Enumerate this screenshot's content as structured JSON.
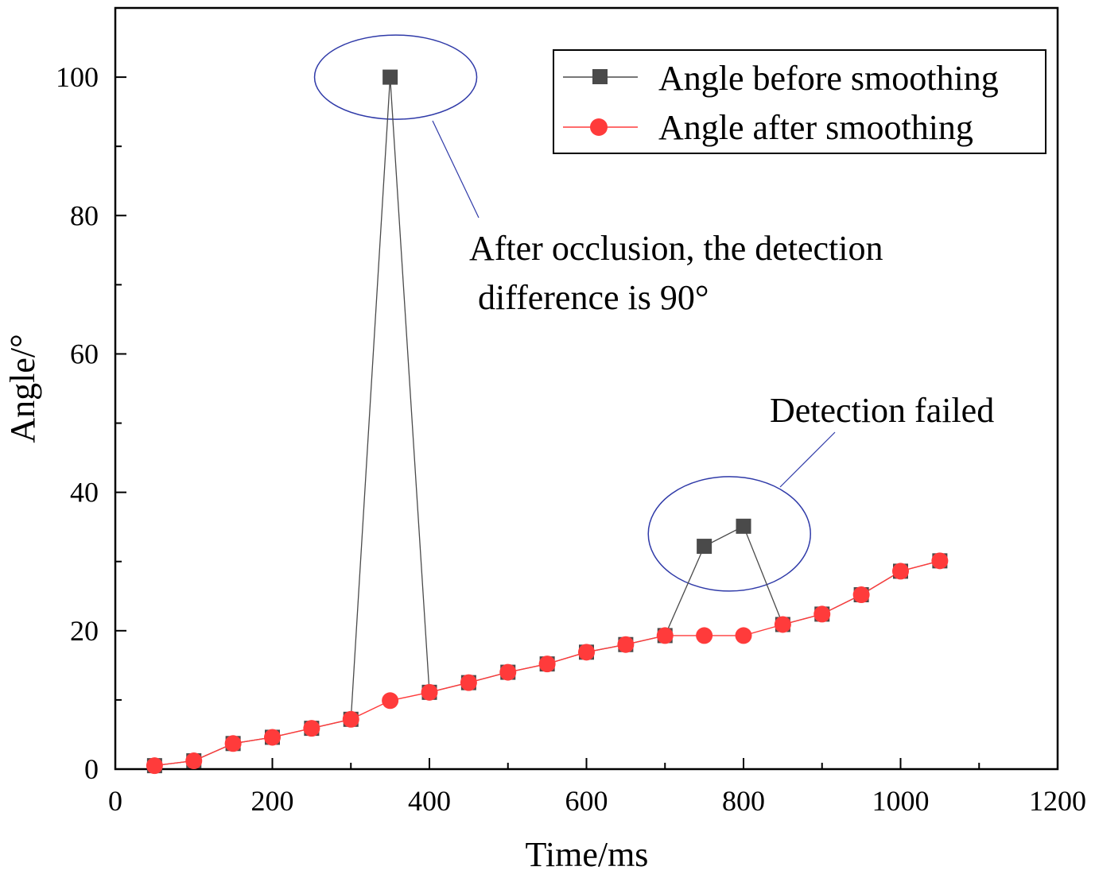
{
  "chart_data": {
    "type": "line",
    "title": "",
    "xlabel": "Time/ms",
    "ylabel": "Angle/°",
    "xlim": [
      0,
      1200
    ],
    "ylim": [
      0,
      110
    ],
    "x_ticks": [
      0,
      200,
      400,
      600,
      800,
      1000,
      1200
    ],
    "y_ticks": [
      0,
      20,
      40,
      60,
      80,
      100
    ],
    "grid": false,
    "legend_position": "top-right",
    "x": [
      50,
      100,
      150,
      200,
      250,
      300,
      350,
      400,
      450,
      500,
      550,
      600,
      650,
      700,
      750,
      800,
      850,
      900,
      950,
      1000,
      1050
    ],
    "series": [
      {
        "name": "Angle before smoothing",
        "marker": "square",
        "color": "#4a4a4a",
        "values": [
          0.5,
          1.2,
          3.7,
          4.6,
          5.9,
          7.2,
          100,
          11.1,
          12.5,
          14.0,
          15.2,
          16.9,
          18.0,
          19.3,
          32.2,
          35.1,
          20.9,
          22.4,
          25.2,
          28.6,
          30.1
        ]
      },
      {
        "name": "Angle after smoothing",
        "marker": "circle",
        "color": "#ff3b3b",
        "values": [
          0.5,
          1.2,
          3.7,
          4.6,
          5.9,
          7.2,
          9.9,
          11.1,
          12.5,
          14.0,
          15.2,
          16.9,
          18.0,
          19.3,
          19.3,
          19.3,
          20.9,
          22.4,
          25.2,
          28.6,
          30.1
        ]
      }
    ],
    "annotations": [
      {
        "name": "occlusion",
        "lines": [
          "After occlusion, the detection",
          " difference is 90°"
        ],
        "circle_center": [
          357,
          100
        ]
      },
      {
        "name": "failed",
        "lines": [
          "Detection failed"
        ],
        "circle_center": [
          782,
          34
        ]
      }
    ]
  }
}
